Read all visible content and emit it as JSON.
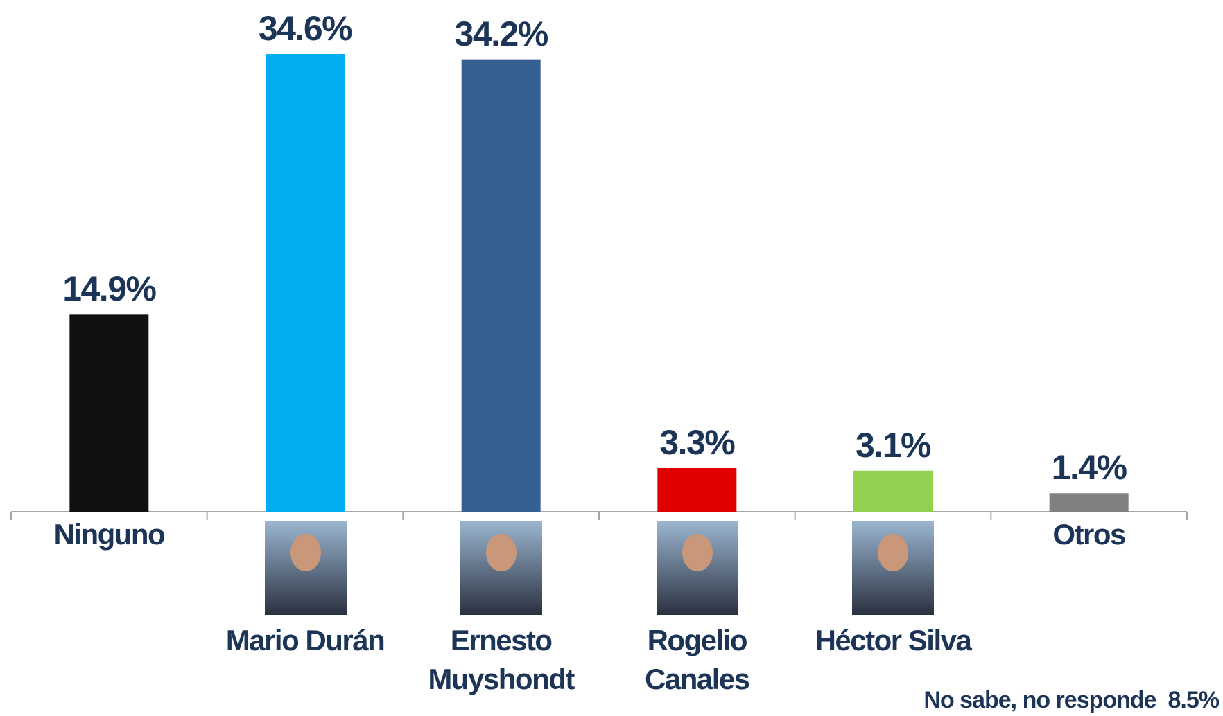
{
  "chart_data": {
    "type": "bar",
    "categories": [
      "Ninguno",
      "Mario Durán",
      "Ernesto Muyshondt",
      "Rogelio Canales",
      "Héctor Silva",
      "Otros"
    ],
    "values": [
      14.9,
      34.6,
      34.2,
      3.3,
      3.1,
      1.4
    ],
    "value_labels": [
      "14.9%",
      "34.6%",
      "34.2%",
      "3.3%",
      "3.1%",
      "1.4%"
    ],
    "colors": [
      "#111111",
      "#00aeef",
      "#376092",
      "#e00000",
      "#92d050",
      "#808080"
    ],
    "note": "No sabe, no responde",
    "note_value": "8.5%"
  }
}
